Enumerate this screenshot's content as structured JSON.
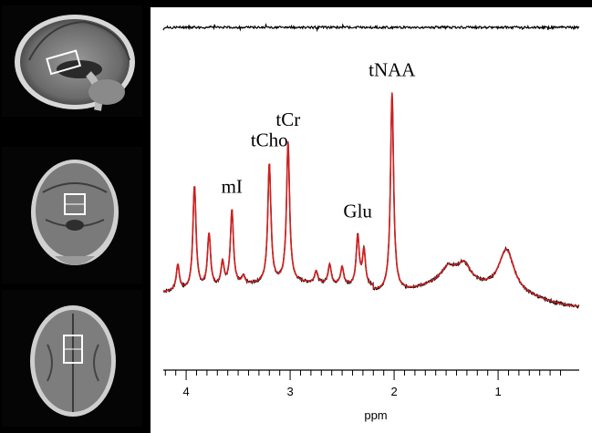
{
  "chart_data": {
    "type": "line",
    "xlabel": "ppm",
    "x_reversed": true,
    "xlim": [
      4.22,
      0.22
    ],
    "x_ticks": [
      4,
      3,
      2,
      1
    ],
    "tick_labels": [
      "4",
      "3",
      "2",
      "1"
    ],
    "y_ticks_shown": false,
    "annotations": [
      {
        "text": "tNAA",
        "x": 2.02
      },
      {
        "text": "tCr",
        "x": 3.02
      },
      {
        "text": "tCho",
        "x": 3.2
      },
      {
        "text": "mI",
        "x": 3.56
      },
      {
        "text": "Glu",
        "x": 2.35
      }
    ],
    "series": [
      {
        "color": "#000000",
        "role": "acquired"
      },
      {
        "color": "#d21e1e",
        "role": "fit"
      },
      {
        "color": "#000000",
        "role": "residual"
      }
    ],
    "peaks": [
      {
        "x": 4.08,
        "height": 0.13
      },
      {
        "x": 3.92,
        "height": 0.52
      },
      {
        "x": 3.78,
        "height": 0.27
      },
      {
        "x": 3.65,
        "height": 0.12
      },
      {
        "x": 3.56,
        "height": 0.38
      },
      {
        "x": 3.45,
        "height": 0.04
      },
      {
        "x": 3.2,
        "height": 0.6
      },
      {
        "x": 3.02,
        "height": 0.7
      },
      {
        "x": 2.75,
        "height": 0.06
      },
      {
        "x": 2.62,
        "height": 0.1
      },
      {
        "x": 2.5,
        "height": 0.09
      },
      {
        "x": 2.35,
        "height": 0.25
      },
      {
        "x": 2.29,
        "height": 0.18
      },
      {
        "x": 2.02,
        "height": 1.0
      },
      {
        "x": 1.48,
        "height": 0.07
      },
      {
        "x": 1.33,
        "height": 0.09
      },
      {
        "x": 0.92,
        "height": 0.22
      }
    ]
  },
  "images": [
    {
      "view": "sagittal"
    },
    {
      "view": "coronal"
    },
    {
      "view": "axial"
    }
  ],
  "colors": {
    "fit": "#d21e1e",
    "data": "#000000",
    "background": "#ffffff",
    "panel_bg": "#000000"
  }
}
